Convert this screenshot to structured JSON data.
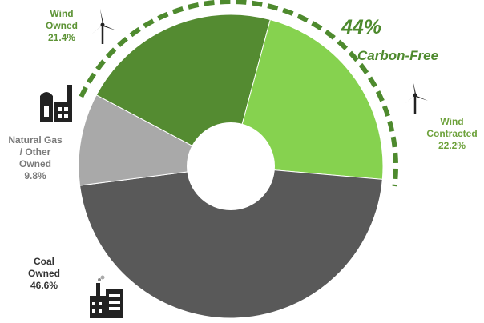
{
  "chart_data": {
    "type": "pie",
    "title": "",
    "slices": [
      {
        "label_lines": [
          "Wind",
          "Owned"
        ],
        "value": 21.4,
        "value_label": "21.4%",
        "color": "#548b31"
      },
      {
        "label_lines": [
          "Wind",
          "Contracted"
        ],
        "value": 22.2,
        "value_label": "22.2%",
        "color": "#86d24f"
      },
      {
        "label_lines": [
          "Coal",
          "Owned"
        ],
        "value": 46.6,
        "value_label": "46.6%",
        "color": "#595959"
      },
      {
        "label_lines": [
          "Natural Gas",
          "/ Other",
          "Owned"
        ],
        "value": 9.8,
        "value_label": "9.8%",
        "color": "#a9a9a9"
      }
    ],
    "annotation": {
      "value": "44%",
      "text": "Carbon-Free",
      "color": "#4e8a2e"
    }
  }
}
